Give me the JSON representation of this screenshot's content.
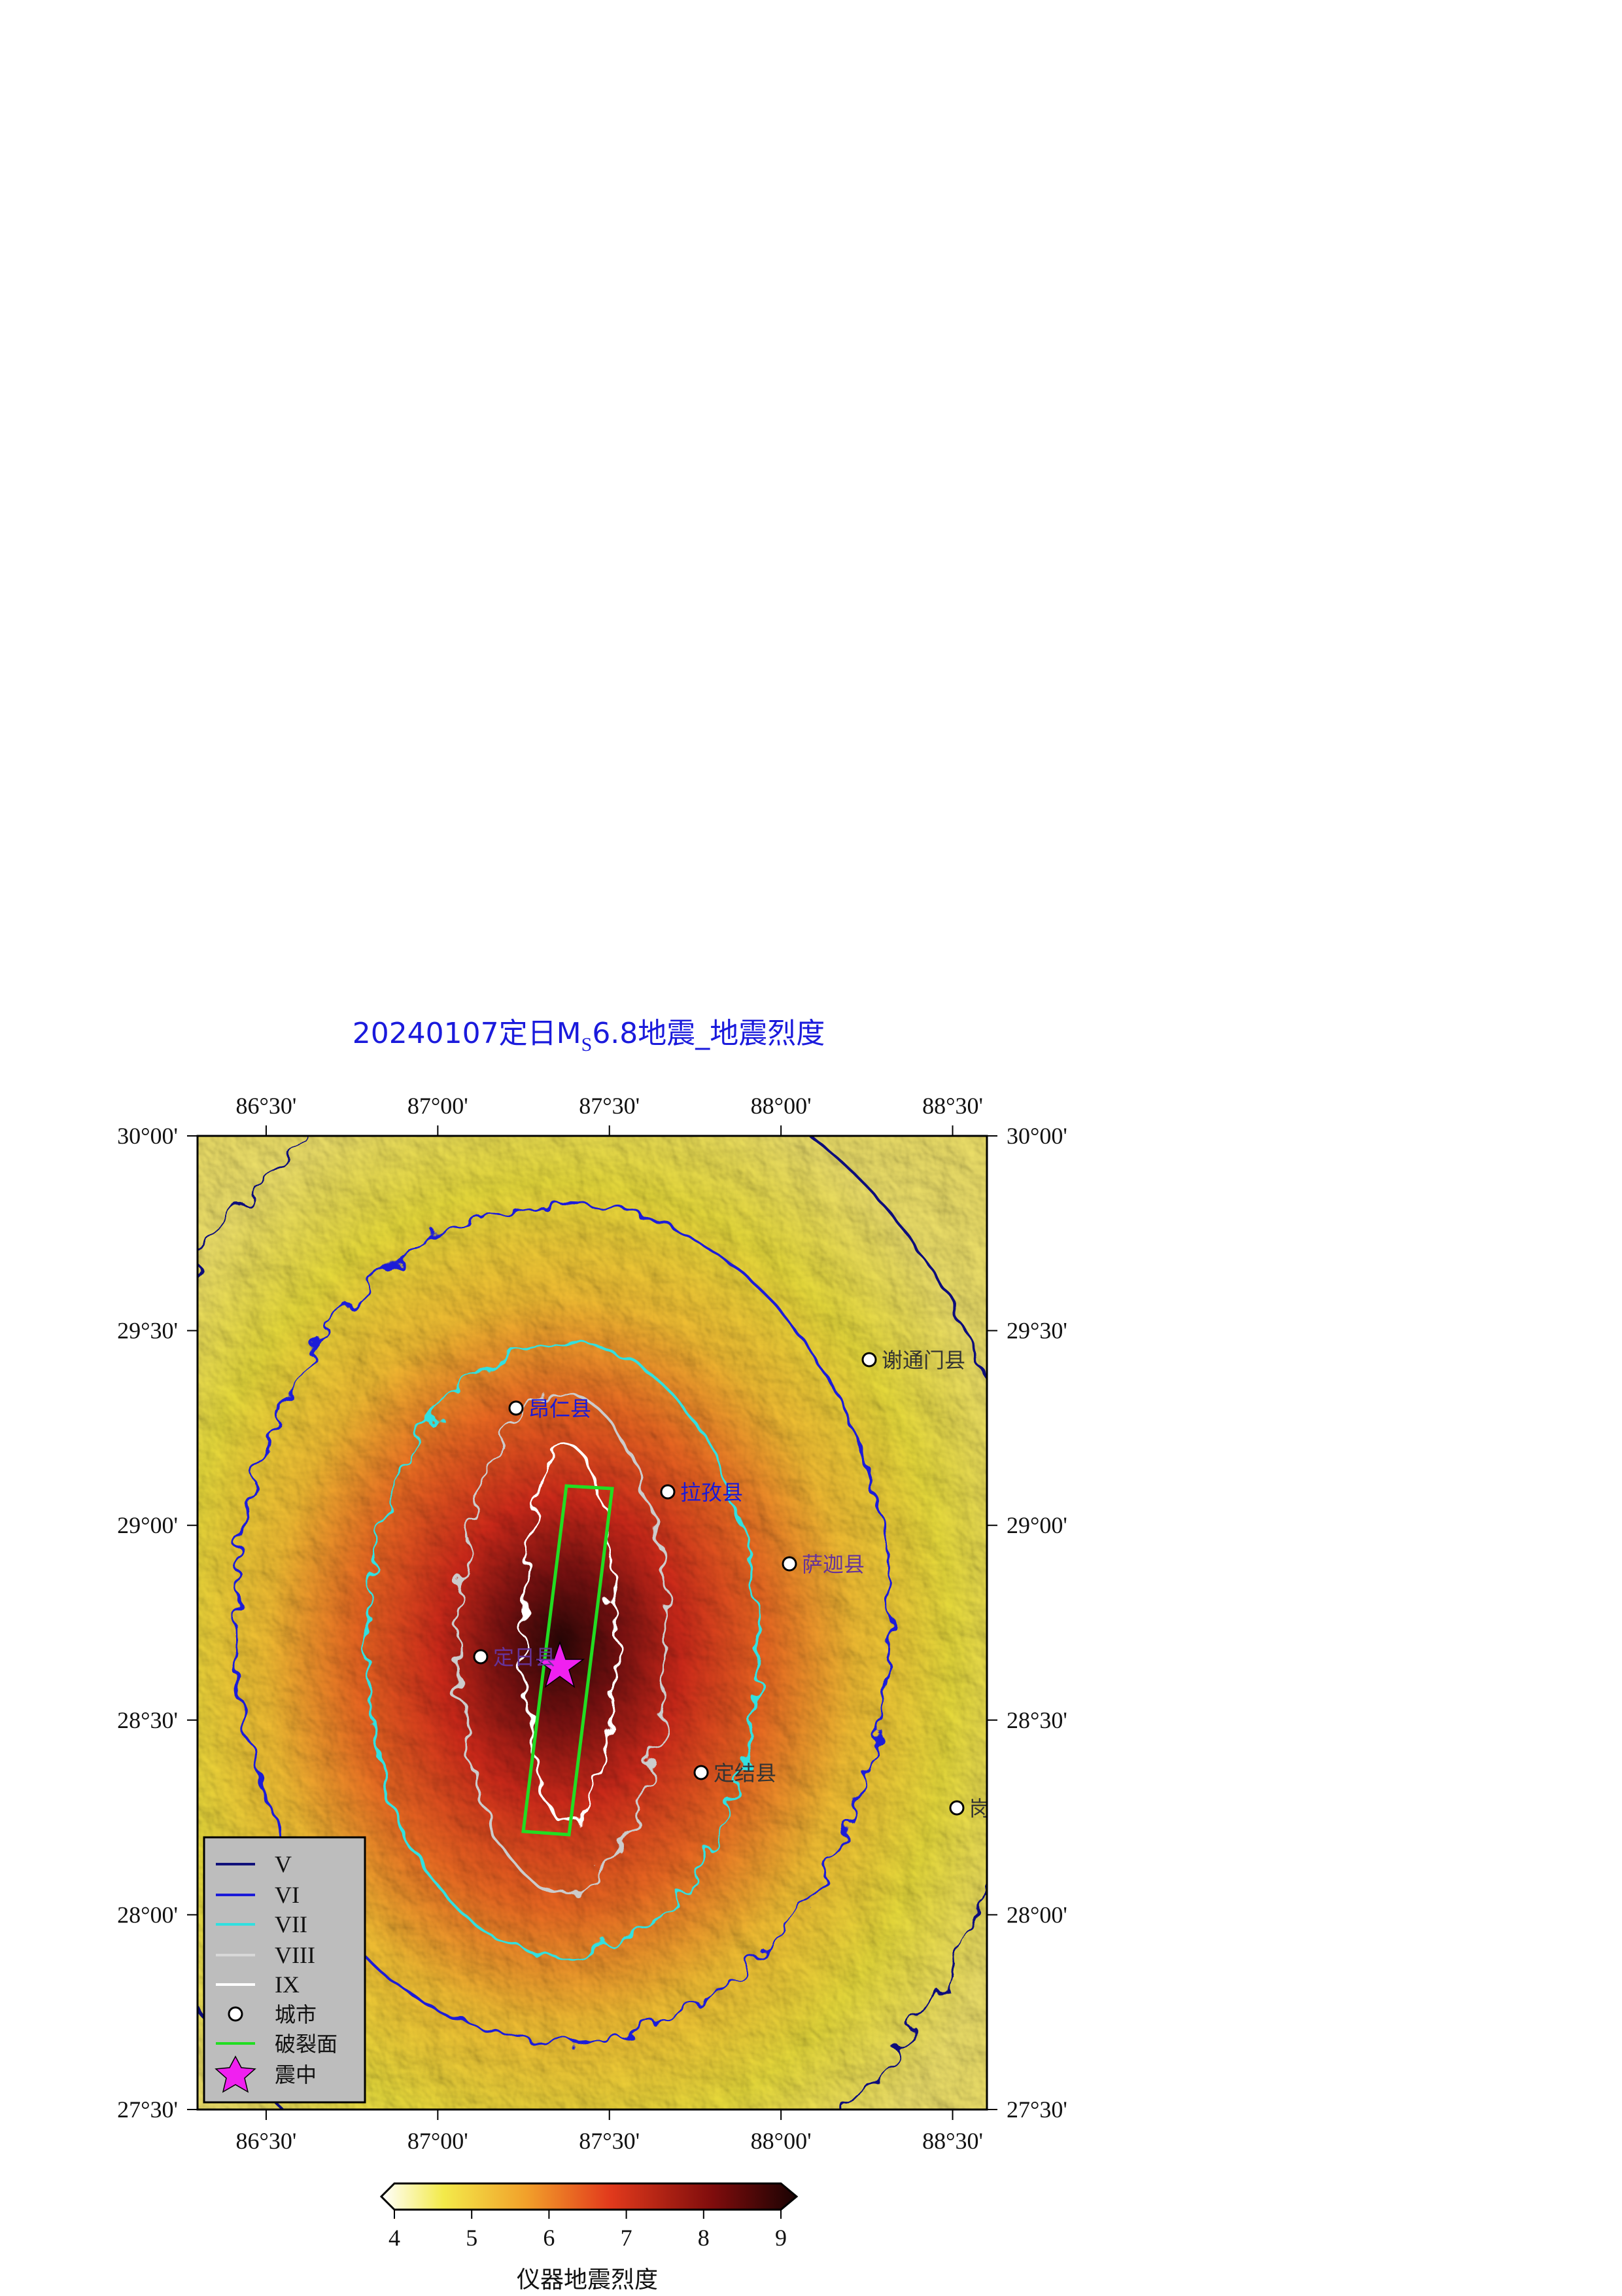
{
  "title": {
    "prefix": "20240107定日M",
    "sub": "S",
    "suffix": "6.8地震_地震烈度"
  },
  "map": {
    "xlim": [
      86.3,
      88.6
    ],
    "ylim": [
      27.5,
      30
    ],
    "xticks": [
      {
        "value": 86.5,
        "label": "86°30'"
      },
      {
        "value": 87,
        "label": "87°00'"
      },
      {
        "value": 87.5,
        "label": "87°30'"
      },
      {
        "value": 88,
        "label": "88°00'"
      },
      {
        "value": 88.5,
        "label": "88°30'"
      }
    ],
    "yticks": [
      {
        "value": 30,
        "label": "30°00'"
      },
      {
        "value": 29.5,
        "label": "29°30'"
      },
      {
        "value": 29,
        "label": "29°00'"
      },
      {
        "value": 28.5,
        "label": "28°30'"
      },
      {
        "value": 28,
        "label": "28°00'"
      },
      {
        "value": 27.5,
        "label": "27°30'"
      }
    ]
  },
  "cities": [
    "昂仁县",
    "谢通门县",
    "拉孜县",
    "萨迦县",
    "定日县",
    "定结县",
    "岗巴县"
  ],
  "legend": [
    "V",
    "VI",
    "VII",
    "VIII",
    "IX",
    "城市",
    "破裂面",
    "震中"
  ],
  "colorbar": {
    "lim": [
      4,
      9
    ],
    "ticks": [
      4,
      5,
      6,
      7,
      8,
      9
    ],
    "label": "仪器地震烈度"
  }
}
